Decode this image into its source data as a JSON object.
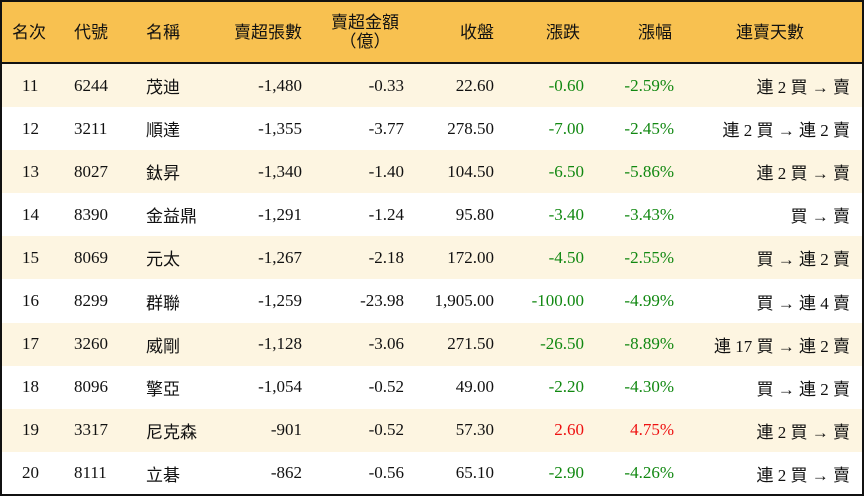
{
  "headers": {
    "rank": "名次",
    "code": "代號",
    "name": "名稱",
    "net_sell_lots": "賣超張數",
    "net_sell_amount": "賣超金額",
    "net_sell_amount_unit": "（億）",
    "close": "收盤",
    "change": "漲跌",
    "change_pct": "漲幅",
    "streak": "連賣天數"
  },
  "colors": {
    "header_bg": "#F8C150",
    "odd_row_bg": "#FDF5E1",
    "up": "#EE1111",
    "down": "#118811"
  },
  "rows": [
    {
      "rank": "11",
      "code": "6244",
      "name": "茂迪",
      "lots": "-1,480",
      "amount": "-0.33",
      "close": "22.60",
      "change": "-0.60",
      "pct": "-2.59%",
      "streak": "連 2 買 → 賣",
      "dir": "down"
    },
    {
      "rank": "12",
      "code": "3211",
      "name": "順達",
      "lots": "-1,355",
      "amount": "-3.77",
      "close": "278.50",
      "change": "-7.00",
      "pct": "-2.45%",
      "streak": "連 2 買 → 連 2 賣",
      "dir": "down"
    },
    {
      "rank": "13",
      "code": "8027",
      "name": "鈦昇",
      "lots": "-1,340",
      "amount": "-1.40",
      "close": "104.50",
      "change": "-6.50",
      "pct": "-5.86%",
      "streak": "連 2 買 → 賣",
      "dir": "down"
    },
    {
      "rank": "14",
      "code": "8390",
      "name": "金益鼎",
      "lots": "-1,291",
      "amount": "-1.24",
      "close": "95.80",
      "change": "-3.40",
      "pct": "-3.43%",
      "streak": "買 → 賣",
      "dir": "down"
    },
    {
      "rank": "15",
      "code": "8069",
      "name": "元太",
      "lots": "-1,267",
      "amount": "-2.18",
      "close": "172.00",
      "change": "-4.50",
      "pct": "-2.55%",
      "streak": "買 → 連 2 賣",
      "dir": "down"
    },
    {
      "rank": "16",
      "code": "8299",
      "name": "群聯",
      "lots": "-1,259",
      "amount": "-23.98",
      "close": "1,905.00",
      "change": "-100.00",
      "pct": "-4.99%",
      "streak": "買 → 連 4 賣",
      "dir": "down"
    },
    {
      "rank": "17",
      "code": "3260",
      "name": "威剛",
      "lots": "-1,128",
      "amount": "-3.06",
      "close": "271.50",
      "change": "-26.50",
      "pct": "-8.89%",
      "streak": "連 17 買 → 連 2 賣",
      "dir": "down"
    },
    {
      "rank": "18",
      "code": "8096",
      "name": "擎亞",
      "lots": "-1,054",
      "amount": "-0.52",
      "close": "49.00",
      "change": "-2.20",
      "pct": "-4.30%",
      "streak": "買 → 連 2 賣",
      "dir": "down"
    },
    {
      "rank": "19",
      "code": "3317",
      "name": "尼克森",
      "lots": "-901",
      "amount": "-0.52",
      "close": "57.30",
      "change": "2.60",
      "pct": "4.75%",
      "streak": "連 2 買 → 賣",
      "dir": "up"
    },
    {
      "rank": "20",
      "code": "8111",
      "name": "立碁",
      "lots": "-862",
      "amount": "-0.56",
      "close": "65.10",
      "change": "-2.90",
      "pct": "-4.26%",
      "streak": "連 2 買 → 賣",
      "dir": "down"
    }
  ]
}
